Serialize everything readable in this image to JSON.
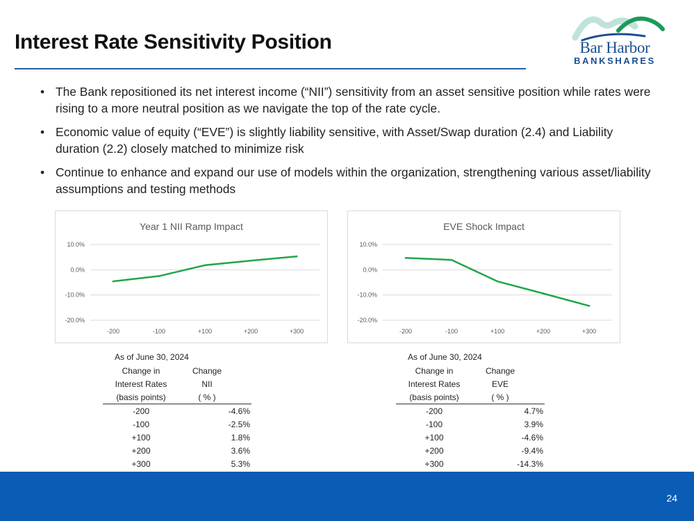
{
  "slide": {
    "title": "Interest Rate Sensitivity Position",
    "page_number": "24",
    "logo": {
      "top": "Bar Harbor",
      "bottom": "BANKSHARES"
    },
    "bullets": [
      "The Bank repositioned its net interest income (“NII”) sensitivity from an asset sensitive position while rates were rising to a more neutral position as we navigate the top of the rate cycle.",
      "Economic value of equity (“EVE”) is slightly liability sensitive, with Asset/Swap duration (2.4) and Liability duration (2.2) closely matched to minimize risk",
      "Continue to enhance and expand our use of models within the organization, strengthening various asset/liability assumptions and testing methods"
    ]
  },
  "colors": {
    "line": "#1fa64a",
    "accent": "#1f5fa8",
    "footer": "#0a5cb4",
    "grid": "#d9d9d9"
  },
  "chart_data": [
    {
      "type": "line",
      "title": "Year 1 NII Ramp Impact",
      "categories": [
        "-200",
        "-100",
        "+100",
        "+200",
        "+300"
      ],
      "values": [
        -4.6,
        -2.5,
        1.8,
        3.6,
        5.3
      ],
      "ylim": [
        -20,
        10
      ],
      "yticks": [
        "10.0%",
        "0.0%",
        "-10.0%",
        "-20.0%"
      ],
      "ytick_values": [
        10,
        0,
        -10,
        -20
      ]
    },
    {
      "type": "line",
      "title": "EVE Shock Impact",
      "categories": [
        "-200",
        "-100",
        "+100",
        "+200",
        "+300"
      ],
      "values": [
        4.7,
        3.9,
        -4.6,
        -9.4,
        -14.3
      ],
      "ylim": [
        -20,
        10
      ],
      "yticks": [
        "10.0%",
        "0.0%",
        "-10.0%",
        "-20.0%"
      ],
      "ytick_values": [
        10,
        0,
        -10,
        -20
      ]
    }
  ],
  "tables": [
    {
      "as_of": "As of June 30, 2024",
      "col1": [
        "Change in",
        "Interest Rates",
        "(basis points)"
      ],
      "col2": [
        "Change",
        "NII",
        "( % )"
      ],
      "rows": [
        [
          "-200",
          "-4.6%"
        ],
        [
          "-100",
          "-2.5%"
        ],
        [
          "+100",
          "1.8%"
        ],
        [
          "+200",
          "3.6%"
        ],
        [
          "+300",
          "5.3%"
        ]
      ]
    },
    {
      "as_of": "As of June 30, 2024",
      "col1": [
        "Change in",
        "Interest Rates",
        "(basis points)"
      ],
      "col2": [
        "Change",
        "EVE",
        "( % )"
      ],
      "rows": [
        [
          "-200",
          "4.7%"
        ],
        [
          "-100",
          "3.9%"
        ],
        [
          "+100",
          "-4.6%"
        ],
        [
          "+200",
          "-9.4%"
        ],
        [
          "+300",
          "-14.3%"
        ]
      ]
    }
  ]
}
